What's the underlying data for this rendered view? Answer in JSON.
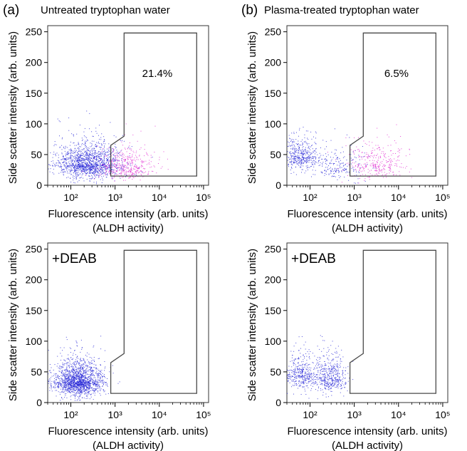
{
  "panel_labels": [
    "(a)",
    "(b)"
  ],
  "column_titles": [
    "Untreated tryptophan water",
    "Plasma-treated tryptophan water"
  ],
  "colors": {
    "negative": "#1f1fd6",
    "positive": "#e020d0",
    "gate": "#4a4a4a",
    "frame": "#333333"
  },
  "chart_data": [
    {
      "type": "scatter",
      "panel": "(a) top",
      "xlabel": "Fluorescence intensity (arb. units)",
      "xlabel2": "(ALDH activity)",
      "ylabel": "Side scatter intensity (arb. units)",
      "xscale": "log",
      "xlim": [
        30,
        130000
      ],
      "ylim": [
        0,
        260
      ],
      "xticks": [
        "10²",
        "10³",
        "10⁴",
        "10⁵"
      ],
      "yticks": [
        0,
        50,
        100,
        150,
        200,
        250
      ],
      "gate_label": "21.4%",
      "treatment_label": "",
      "clusters": [
        {
          "center": [
            250,
            35
          ],
          "spread": [
            0.38,
            16
          ],
          "count": 1500,
          "color": "negative"
        },
        {
          "center": [
            1800,
            30
          ],
          "spread": [
            0.32,
            15
          ],
          "count": 420,
          "color": "positive"
        }
      ]
    },
    {
      "type": "scatter",
      "panel": "(b) top",
      "xlabel": "Fluorescence intensity (arb. units)",
      "xlabel2": "(ALDH activity)",
      "ylabel": "Side scatter intensity (arb. units)",
      "xscale": "log",
      "xlim": [
        30,
        130000
      ],
      "ylim": [
        0,
        260
      ],
      "xticks": [
        "10²",
        "10³",
        "10⁴",
        "10⁵"
      ],
      "yticks": [
        0,
        50,
        100,
        150,
        200,
        250
      ],
      "gate_label": "6.5%",
      "treatment_label": "",
      "clusters": [
        {
          "center": [
            55,
            48
          ],
          "spread": [
            0.25,
            14
          ],
          "count": 480,
          "color": "negative"
        },
        {
          "center": [
            450,
            30
          ],
          "spread": [
            0.3,
            15
          ],
          "count": 200,
          "color": "negative"
        },
        {
          "center": [
            3000,
            35
          ],
          "spread": [
            0.35,
            16
          ],
          "count": 330,
          "color": "positive"
        }
      ]
    },
    {
      "type": "scatter",
      "panel": "(a) bottom",
      "xlabel": "Fluorescence intensity (arb. units)",
      "xlabel2": "(ALDH activity)",
      "ylabel": "Side scatter intensity (arb. units)",
      "xscale": "log",
      "xlim": [
        30,
        130000
      ],
      "ylim": [
        0,
        260
      ],
      "xticks": [
        "10²",
        "10³",
        "10⁴",
        "10⁵"
      ],
      "yticks": [
        0,
        50,
        100,
        150,
        200,
        250
      ],
      "gate_label": "",
      "treatment_label": "+DEAB",
      "clusters": [
        {
          "center": [
            140,
            35
          ],
          "spread": [
            0.28,
            16
          ],
          "count": 1700,
          "color": "negative"
        }
      ]
    },
    {
      "type": "scatter",
      "panel": "(b) bottom",
      "xlabel": "Fluorescence intensity (arb. units)",
      "xlabel2": "(ALDH activity)",
      "ylabel": "Side scatter intensity (arb. units)",
      "xscale": "log",
      "xlim": [
        30,
        130000
      ],
      "ylim": [
        0,
        260
      ],
      "xticks": [
        "10²",
        "10³",
        "10⁴",
        "10⁵"
      ],
      "yticks": [
        0,
        50,
        100,
        150,
        200,
        250
      ],
      "gate_label": "",
      "treatment_label": "+DEAB",
      "clusters": [
        {
          "center": [
            60,
            45
          ],
          "spread": [
            0.23,
            15
          ],
          "count": 420,
          "color": "negative"
        },
        {
          "center": [
            270,
            42
          ],
          "spread": [
            0.2,
            18
          ],
          "count": 450,
          "color": "negative"
        }
      ]
    }
  ],
  "gate_polygon": [
    [
      800,
      15
    ],
    [
      800,
      65
    ],
    [
      1600,
      80
    ],
    [
      1600,
      248
    ],
    [
      70000,
      248
    ],
    [
      70000,
      15
    ]
  ]
}
